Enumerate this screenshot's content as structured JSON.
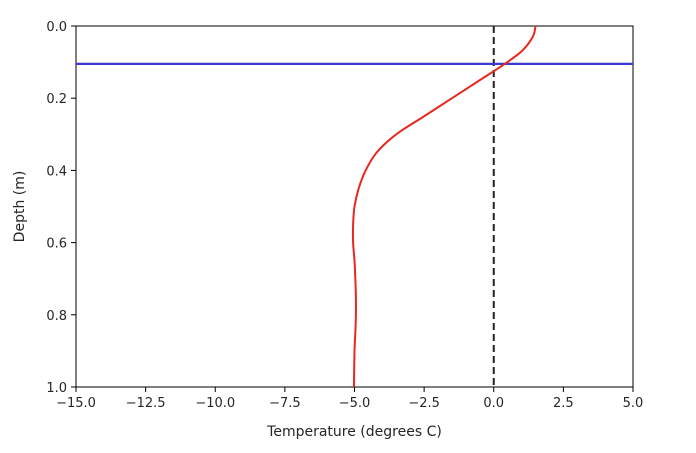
{
  "chart_data": {
    "type": "line",
    "title": "",
    "xlabel": "Temperature (degrees C)",
    "ylabel": "Depth (m)",
    "xlim": [
      -15.0,
      5.0
    ],
    "ylim": [
      0.0,
      1.0
    ],
    "y_inverted": true,
    "grid": false,
    "legend": "none",
    "xticks": [
      -15.0,
      -12.5,
      -10.0,
      -7.5,
      -5.0,
      -2.5,
      0.0,
      2.5,
      5.0
    ],
    "xtick_labels": [
      "−15.0",
      "−12.5",
      "−10.0",
      "−7.5",
      "−5.0",
      "−2.5",
      "0.0",
      "2.5",
      "5.0"
    ],
    "yticks": [
      0.0,
      0.2,
      0.4,
      0.6,
      0.8,
      1.0
    ],
    "ytick_labels": [
      "0.0",
      "0.2",
      "0.4",
      "0.6",
      "0.8",
      "1.0"
    ],
    "series": [
      {
        "color": "#e8281e",
        "style": "solid",
        "x": [
          1.5,
          1.4,
          1.0,
          0.3,
          -0.5,
          -1.5,
          -2.5,
          -3.5,
          -4.2,
          -4.6,
          -4.85,
          -5.0,
          -5.05,
          -5.05,
          -5.0,
          -4.97,
          -4.95,
          -4.95,
          -4.97,
          -5.0,
          -5.02
        ],
        "y": [
          0.0,
          0.03,
          0.07,
          0.11,
          0.15,
          0.2,
          0.25,
          0.3,
          0.35,
          0.4,
          0.45,
          0.5,
          0.55,
          0.6,
          0.65,
          0.7,
          0.75,
          0.8,
          0.85,
          0.9,
          1.0
        ]
      }
    ],
    "reference_lines": [
      {
        "orientation": "vertical",
        "value": 0.0,
        "color": "#222222",
        "style": "dashed"
      },
      {
        "orientation": "horizontal",
        "value": 0.105,
        "color": "#3a3ad0",
        "style": "solid"
      }
    ]
  }
}
